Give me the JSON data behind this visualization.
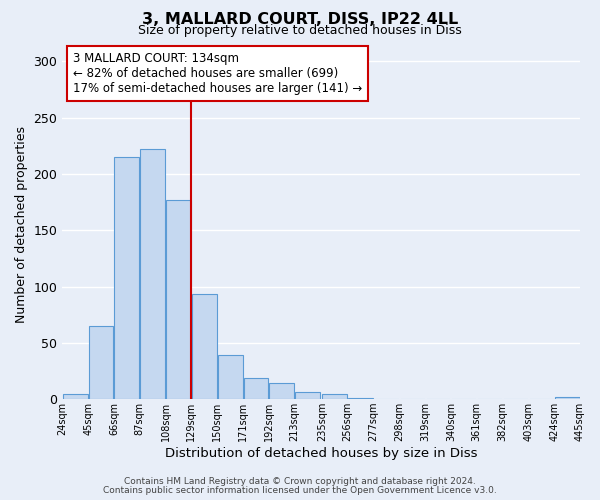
{
  "title": "3, MALLARD COURT, DISS, IP22 4LL",
  "subtitle": "Size of property relative to detached houses in Diss",
  "xlabel": "Distribution of detached houses by size in Diss",
  "ylabel": "Number of detached properties",
  "bar_color": "#c5d8f0",
  "bar_edge_color": "#5b9bd5",
  "background_color": "#e8eef8",
  "plot_bg_color": "#e8eef8",
  "grid_color": "#ffffff",
  "vline_x": 129,
  "vline_color": "#cc0000",
  "bin_edges": [
    24,
    45,
    66,
    87,
    108,
    129,
    150,
    171,
    192,
    213,
    235,
    256,
    277,
    298,
    319,
    340,
    361,
    382,
    403,
    424,
    445
  ],
  "bin_labels": [
    "24sqm",
    "45sqm",
    "66sqm",
    "87sqm",
    "108sqm",
    "129sqm",
    "150sqm",
    "171sqm",
    "192sqm",
    "213sqm",
    "235sqm",
    "256sqm",
    "277sqm",
    "298sqm",
    "319sqm",
    "340sqm",
    "361sqm",
    "382sqm",
    "403sqm",
    "424sqm",
    "445sqm"
  ],
  "counts": [
    5,
    65,
    215,
    222,
    177,
    93,
    39,
    19,
    14,
    6,
    5,
    1,
    0,
    0,
    0,
    0,
    0,
    0,
    0,
    2
  ],
  "ylim": [
    0,
    310
  ],
  "yticks": [
    0,
    50,
    100,
    150,
    200,
    250,
    300
  ],
  "annotation_title": "3 MALLARD COURT: 134sqm",
  "annotation_line2": "← 82% of detached houses are smaller (699)",
  "annotation_line3": "17% of semi-detached houses are larger (141) →",
  "annotation_box_color": "#ffffff",
  "annotation_box_edge": "#cc0000",
  "footnote1": "Contains HM Land Registry data © Crown copyright and database right 2024.",
  "footnote2": "Contains public sector information licensed under the Open Government Licence v3.0."
}
